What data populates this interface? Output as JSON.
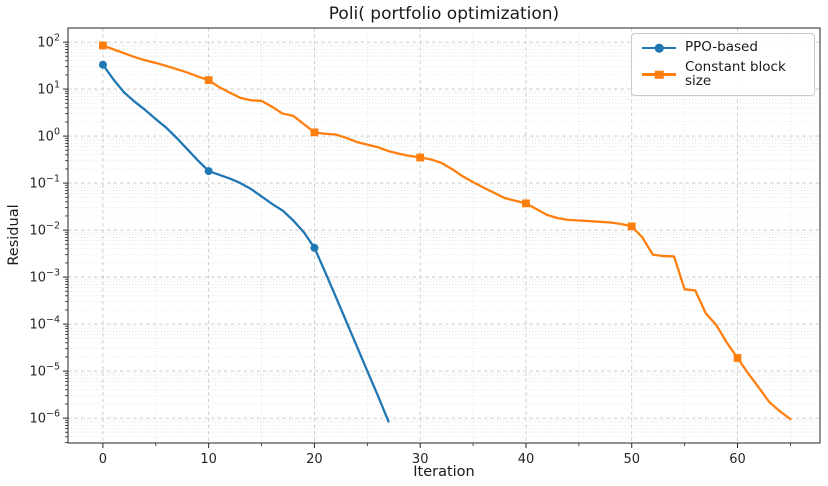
{
  "chart_data": {
    "type": "line",
    "title": "Poli( portfolio optimization)",
    "xlabel": "Iteration",
    "ylabel": "Residual",
    "y_scale": "log",
    "grid": "major-dashed and minor-dotted, both axes",
    "legend_position": "upper right",
    "xlim": [
      -3.3,
      67.8
    ],
    "ylim_exp": [
      -6.53,
      2.3
    ],
    "x_ticks": [
      0,
      10,
      20,
      30,
      40,
      50,
      60
    ],
    "x_minor_step": 5,
    "y_tick_exponents": [
      2,
      1,
      0,
      -1,
      -2,
      -3,
      -4,
      -5,
      -6
    ],
    "axis_color": "#262626",
    "grid_major_color": "#c6c6c6",
    "grid_minor_color": "#d9d9d9",
    "series": [
      {
        "name": "PPO-based",
        "color": "#1f77b4",
        "marker": "circle",
        "marker_every": 10,
        "x": [
          0,
          1,
          2,
          3,
          4,
          5,
          6,
          7,
          8,
          9,
          10,
          11,
          12,
          13,
          14,
          15,
          16,
          17,
          18,
          19,
          20,
          21,
          22,
          23,
          24,
          25,
          26,
          27
        ],
        "y": [
          33,
          16,
          8.5,
          5.4,
          3.6,
          2.3,
          1.5,
          0.9,
          0.52,
          0.3,
          0.18,
          0.15,
          0.125,
          0.1,
          0.075,
          0.052,
          0.036,
          0.026,
          0.016,
          0.009,
          0.0042,
          0.0013,
          0.00039,
          0.000115,
          3.4e-05,
          1e-05,
          3e-06,
          8.5e-07
        ]
      },
      {
        "name": "Constant block size",
        "color": "#ff7f0e",
        "marker": "square",
        "marker_every": 10,
        "x": [
          0,
          1,
          2,
          3,
          4,
          5,
          6,
          7,
          8,
          9,
          10,
          11,
          12,
          13,
          14,
          15,
          16,
          17,
          18,
          19,
          20,
          21,
          22,
          23,
          24,
          25,
          26,
          27,
          28,
          29,
          30,
          31,
          32,
          33,
          34,
          35,
          36,
          37,
          38,
          39,
          40,
          41,
          42,
          43,
          44,
          45,
          46,
          47,
          48,
          49,
          50,
          51,
          52,
          53,
          54,
          55,
          56,
          57,
          58,
          59,
          60,
          61,
          62,
          63,
          64,
          65
        ],
        "y": [
          85,
          70,
          58,
          48,
          41,
          36,
          31,
          26.5,
          22.5,
          18.5,
          15.5,
          11,
          8.4,
          6.5,
          5.8,
          5.6,
          4.2,
          3.0,
          2.7,
          1.8,
          1.2,
          1.12,
          1.08,
          0.92,
          0.75,
          0.66,
          0.58,
          0.48,
          0.42,
          0.38,
          0.35,
          0.32,
          0.27,
          0.2,
          0.14,
          0.105,
          0.08,
          0.062,
          0.048,
          0.042,
          0.037,
          0.028,
          0.021,
          0.018,
          0.0165,
          0.016,
          0.0155,
          0.015,
          0.0145,
          0.0135,
          0.012,
          0.007,
          0.003,
          0.0028,
          0.00275,
          0.00055,
          0.00052,
          0.00017,
          9.5e-05,
          4e-05,
          1.9e-05,
          9e-06,
          4.5e-06,
          2.2e-06,
          1.4e-06,
          9.5e-07
        ]
      }
    ]
  }
}
